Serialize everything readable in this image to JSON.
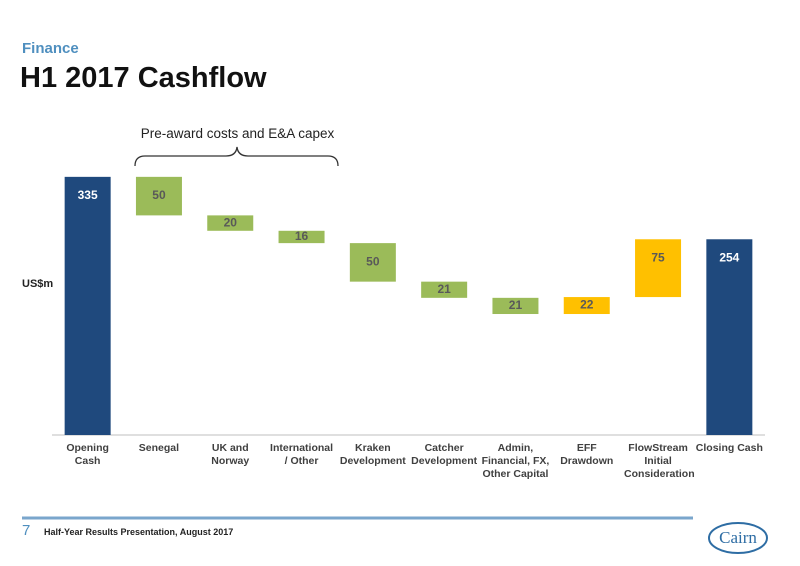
{
  "header": {
    "section": "Finance",
    "title": "H1 2017 Cashflow"
  },
  "chart_data": {
    "type": "waterfall",
    "y_label": "US$m",
    "annotation": "Pre-award costs and E&A capex",
    "categories": [
      "Opening Cash",
      "Senegal",
      "UK and Norway",
      "International / Other",
      "Kraken Development",
      "Catcher Development",
      "Admin, Financial, FX, Other Capital",
      "EFF Drawdown",
      "FlowStream Initial Consideration",
      "Closing Cash"
    ],
    "measures": [
      "absolute",
      "relative",
      "relative",
      "relative",
      "relative",
      "relative",
      "relative",
      "relative",
      "relative",
      "absolute"
    ],
    "values": [
      335,
      -50,
      -20,
      -16,
      -50,
      -21,
      -21,
      22,
      75,
      254
    ],
    "value_labels": [
      "335",
      "50",
      "20",
      "16",
      "50",
      "21",
      "21",
      "22",
      "75",
      "254"
    ],
    "colors": [
      "#1f497d",
      "#9bbb59",
      "#9bbb59",
      "#9bbb59",
      "#9bbb59",
      "#9bbb59",
      "#9bbb59",
      "#ffc000",
      "#ffc000",
      "#1f497d"
    ],
    "ylim": [
      0,
      340
    ]
  },
  "footer": {
    "page": "7",
    "text": "Half-Year Results Presentation, August 2017",
    "logo": "Cairn"
  }
}
